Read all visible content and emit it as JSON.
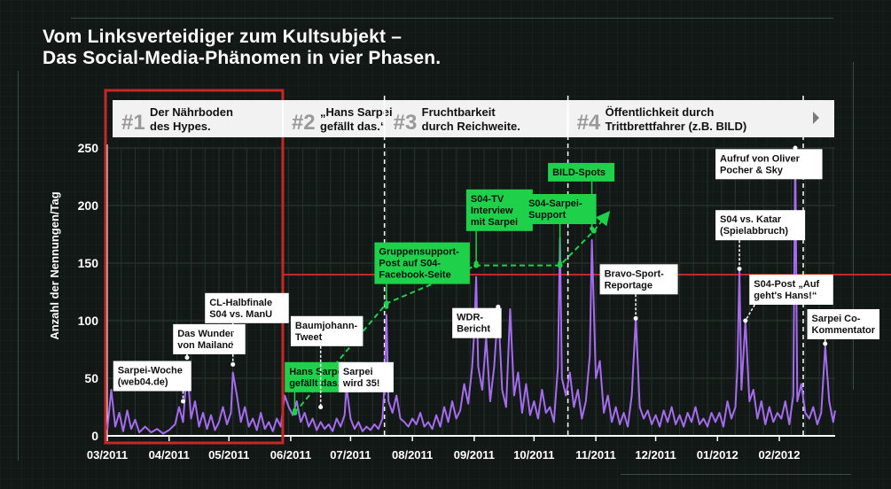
{
  "title_lines": [
    "Vom Linksverteidiger zum Kultsubjekt –",
    "Das Social-Media-Phänomen in vier Phasen."
  ],
  "chart_data": {
    "type": "line",
    "ylabel": "Anzahl der Nennungen/Tag",
    "xlabel": "",
    "ylim": [
      0,
      250
    ],
    "yticks": [
      0,
      50,
      100,
      150,
      200,
      250
    ],
    "x_start": "2011-03-01",
    "x_end": "2012-02-29",
    "xticks": [
      {
        "date": "2011-03-01",
        "label": "03/2011"
      },
      {
        "date": "2011-04-01",
        "label": "04/2011"
      },
      {
        "date": "2011-05-01",
        "label": "05/2011"
      },
      {
        "date": "2011-06-01",
        "label": "06/2011"
      },
      {
        "date": "2011-07-01",
        "label": "07/2011"
      },
      {
        "date": "2011-08-01",
        "label": "08/2011"
      },
      {
        "date": "2011-09-01",
        "label": "09/2011"
      },
      {
        "date": "2011-10-01",
        "label": "10/2011"
      },
      {
        "date": "2011-11-01",
        "label": "11/2011"
      },
      {
        "date": "2011-12-01",
        "label": "12/2011"
      },
      {
        "date": "2012-01-01",
        "label": "01/2012"
      },
      {
        "date": "2012-02-01",
        "label": "02/2012"
      }
    ],
    "series_color": "#a66cf0",
    "accent_red": "#c62828",
    "accent_green": "#1fd14a",
    "reference_level": 140,
    "series": [
      {
        "name": "",
        "points": [
          [
            "2011-03-01",
            5
          ],
          [
            "2011-03-03",
            40
          ],
          [
            "2011-03-05",
            8
          ],
          [
            "2011-03-07",
            20
          ],
          [
            "2011-03-09",
            4
          ],
          [
            "2011-03-11",
            22
          ],
          [
            "2011-03-13",
            6
          ],
          [
            "2011-03-15",
            14
          ],
          [
            "2011-03-17",
            3
          ],
          [
            "2011-03-20",
            8
          ],
          [
            "2011-03-23",
            3
          ],
          [
            "2011-03-26",
            6
          ],
          [
            "2011-03-29",
            2
          ],
          [
            "2011-04-01",
            5
          ],
          [
            "2011-04-04",
            10
          ],
          [
            "2011-04-06",
            25
          ],
          [
            "2011-04-08",
            12
          ],
          [
            "2011-04-10",
            60
          ],
          [
            "2011-04-12",
            15
          ],
          [
            "2011-04-14",
            30
          ],
          [
            "2011-04-16",
            8
          ],
          [
            "2011-04-18",
            20
          ],
          [
            "2011-04-20",
            6
          ],
          [
            "2011-04-22",
            18
          ],
          [
            "2011-04-24",
            5
          ],
          [
            "2011-04-26",
            12
          ],
          [
            "2011-04-28",
            25
          ],
          [
            "2011-04-30",
            10
          ],
          [
            "2011-05-02",
            20
          ],
          [
            "2011-05-03",
            55
          ],
          [
            "2011-05-05",
            35
          ],
          [
            "2011-05-07",
            12
          ],
          [
            "2011-05-09",
            25
          ],
          [
            "2011-05-11",
            8
          ],
          [
            "2011-05-13",
            15
          ],
          [
            "2011-05-15",
            5
          ],
          [
            "2011-05-17",
            20
          ],
          [
            "2011-05-19",
            6
          ],
          [
            "2011-05-21",
            12
          ],
          [
            "2011-05-23",
            4
          ],
          [
            "2011-05-25",
            15
          ],
          [
            "2011-05-27",
            8
          ],
          [
            "2011-05-28",
            22
          ],
          [
            "2011-05-29",
            35
          ],
          [
            "2011-05-31",
            25
          ],
          [
            "2011-06-02",
            18
          ],
          [
            "2011-06-04",
            30
          ],
          [
            "2011-06-06",
            12
          ],
          [
            "2011-06-08",
            20
          ],
          [
            "2011-06-10",
            8
          ],
          [
            "2011-06-12",
            15
          ],
          [
            "2011-06-14",
            5
          ],
          [
            "2011-06-16",
            12
          ],
          [
            "2011-06-18",
            6
          ],
          [
            "2011-06-20",
            10
          ],
          [
            "2011-06-22",
            4
          ],
          [
            "2011-06-24",
            15
          ],
          [
            "2011-06-26",
            8
          ],
          [
            "2011-06-28",
            18
          ],
          [
            "2011-06-29",
            42
          ],
          [
            "2011-07-01",
            15
          ],
          [
            "2011-07-03",
            6
          ],
          [
            "2011-07-05",
            12
          ],
          [
            "2011-07-07",
            4
          ],
          [
            "2011-07-09",
            8
          ],
          [
            "2011-07-11",
            5
          ],
          [
            "2011-07-13",
            10
          ],
          [
            "2011-07-15",
            6
          ],
          [
            "2011-07-17",
            15
          ],
          [
            "2011-07-18",
            45
          ],
          [
            "2011-07-19",
            105
          ],
          [
            "2011-07-20",
            30
          ],
          [
            "2011-07-22",
            20
          ],
          [
            "2011-07-24",
            35
          ],
          [
            "2011-07-26",
            15
          ],
          [
            "2011-07-28",
            12
          ],
          [
            "2011-07-30",
            8
          ],
          [
            "2011-08-01",
            15
          ],
          [
            "2011-08-03",
            10
          ],
          [
            "2011-08-05",
            20
          ],
          [
            "2011-08-07",
            8
          ],
          [
            "2011-08-09",
            12
          ],
          [
            "2011-08-11",
            6
          ],
          [
            "2011-08-13",
            18
          ],
          [
            "2011-08-15",
            8
          ],
          [
            "2011-08-17",
            25
          ],
          [
            "2011-08-19",
            12
          ],
          [
            "2011-08-21",
            30
          ],
          [
            "2011-08-23",
            15
          ],
          [
            "2011-08-25",
            22
          ],
          [
            "2011-08-27",
            45
          ],
          [
            "2011-08-29",
            28
          ],
          [
            "2011-08-31",
            60
          ],
          [
            "2011-09-01",
            90
          ],
          [
            "2011-09-02",
            138
          ],
          [
            "2011-09-03",
            60
          ],
          [
            "2011-09-05",
            40
          ],
          [
            "2011-09-07",
            85
          ],
          [
            "2011-09-09",
            30
          ],
          [
            "2011-09-11",
            60
          ],
          [
            "2011-09-13",
            112
          ],
          [
            "2011-09-15",
            40
          ],
          [
            "2011-09-17",
            25
          ],
          [
            "2011-09-19",
            110
          ],
          [
            "2011-09-21",
            35
          ],
          [
            "2011-09-23",
            55
          ],
          [
            "2011-09-25",
            20
          ],
          [
            "2011-09-27",
            45
          ],
          [
            "2011-09-29",
            18
          ],
          [
            "2011-10-01",
            30
          ],
          [
            "2011-10-03",
            15
          ],
          [
            "2011-10-05",
            40
          ],
          [
            "2011-10-07",
            20
          ],
          [
            "2011-10-09",
            25
          ],
          [
            "2011-10-11",
            12
          ],
          [
            "2011-10-13",
            60
          ],
          [
            "2011-10-14",
            172
          ],
          [
            "2011-10-15",
            50
          ],
          [
            "2011-10-17",
            35
          ],
          [
            "2011-10-19",
            55
          ],
          [
            "2011-10-21",
            25
          ],
          [
            "2011-10-23",
            40
          ],
          [
            "2011-10-25",
            15
          ],
          [
            "2011-10-27",
            30
          ],
          [
            "2011-10-29",
            70
          ],
          [
            "2011-10-30",
            170
          ],
          [
            "2011-11-01",
            50
          ],
          [
            "2011-11-03",
            65
          ],
          [
            "2011-11-05",
            20
          ],
          [
            "2011-11-07",
            35
          ],
          [
            "2011-11-09",
            12
          ],
          [
            "2011-11-11",
            25
          ],
          [
            "2011-11-13",
            10
          ],
          [
            "2011-11-15",
            20
          ],
          [
            "2011-11-17",
            8
          ],
          [
            "2011-11-19",
            35
          ],
          [
            "2011-11-21",
            102
          ],
          [
            "2011-11-23",
            25
          ],
          [
            "2011-11-25",
            15
          ],
          [
            "2011-11-27",
            22
          ],
          [
            "2011-11-29",
            10
          ],
          [
            "2011-12-01",
            18
          ],
          [
            "2011-12-03",
            8
          ],
          [
            "2011-12-05",
            22
          ],
          [
            "2011-12-07",
            12
          ],
          [
            "2011-12-09",
            25
          ],
          [
            "2011-12-11",
            10
          ],
          [
            "2011-12-13",
            18
          ],
          [
            "2011-12-15",
            8
          ],
          [
            "2011-12-17",
            20
          ],
          [
            "2011-12-19",
            12
          ],
          [
            "2011-12-21",
            25
          ],
          [
            "2011-12-23",
            10
          ],
          [
            "2011-12-25",
            15
          ],
          [
            "2011-12-27",
            8
          ],
          [
            "2011-12-29",
            20
          ],
          [
            "2011-12-31",
            12
          ],
          [
            "2012-01-02",
            20
          ],
          [
            "2012-01-04",
            8
          ],
          [
            "2012-01-06",
            30
          ],
          [
            "2012-01-08",
            15
          ],
          [
            "2012-01-10",
            25
          ],
          [
            "2012-01-11",
            60
          ],
          [
            "2012-01-12",
            145
          ],
          [
            "2012-01-13",
            40
          ],
          [
            "2012-01-15",
            100
          ],
          [
            "2012-01-17",
            30
          ],
          [
            "2012-01-19",
            40
          ],
          [
            "2012-01-21",
            15
          ],
          [
            "2012-01-23",
            30
          ],
          [
            "2012-01-25",
            10
          ],
          [
            "2012-01-27",
            25
          ],
          [
            "2012-01-29",
            12
          ],
          [
            "2012-01-31",
            20
          ],
          [
            "2012-02-02",
            15
          ],
          [
            "2012-02-04",
            30
          ],
          [
            "2012-02-06",
            10
          ],
          [
            "2012-02-08",
            35
          ],
          [
            "2012-02-09",
            250
          ],
          [
            "2012-02-10",
            30
          ],
          [
            "2012-02-12",
            45
          ],
          [
            "2012-02-14",
            20
          ],
          [
            "2012-02-16",
            15
          ],
          [
            "2012-02-18",
            25
          ],
          [
            "2012-02-20",
            10
          ],
          [
            "2012-02-22",
            20
          ],
          [
            "2012-02-24",
            78
          ],
          [
            "2012-02-26",
            30
          ],
          [
            "2012-02-28",
            12
          ],
          [
            "2012-02-29",
            22
          ]
        ]
      }
    ],
    "phase_dividers": [
      "2011-05-28",
      "2011-07-18",
      "2011-10-18",
      "2012-02-13"
    ],
    "phases": [
      {
        "num": "#1",
        "text": [
          "Der Nährboden",
          "des Hypes."
        ],
        "date": "2011-03-01"
      },
      {
        "num": "#2",
        "text": [
          "„Hans Sarpei",
          "gefällt das.“"
        ],
        "date": "2011-05-28"
      },
      {
        "num": "#3",
        "text": [
          "Fruchtbarkeit",
          "durch Reichweite."
        ],
        "date": "2011-07-18"
      },
      {
        "num": "#4",
        "text": [
          "Öffentlichkeit durch",
          "Trittbrettfahrer (z.B. BILD)"
        ],
        "date": "2011-10-18"
      }
    ],
    "green_trend": [
      [
        "2011-06-03",
        20
      ],
      [
        "2011-07-19",
        115
      ],
      [
        "2011-09-02",
        148
      ],
      [
        "2011-10-14",
        148
      ],
      [
        "2011-10-31",
        178
      ],
      [
        "2011-11-07",
        193
      ]
    ],
    "annotations": [
      {
        "lines": [
          "Sarpei-Woche",
          "(web04.de)"
        ],
        "box": [
          "2011-03-04",
          65
        ],
        "target": [
          "2011-04-08",
          30
        ],
        "style": "white"
      },
      {
        "lines": [
          "Das Wunder",
          "von Mailand"
        ],
        "box": [
          "2011-04-03",
          97
        ],
        "target": [
          "2011-04-10",
          68
        ],
        "style": "white"
      },
      {
        "lines": [
          "CL-Halbfinale",
          "S04 vs. ManU"
        ],
        "box": [
          "2011-04-19",
          124
        ],
        "target": [
          "2011-05-03",
          62
        ],
        "style": "white"
      },
      {
        "lines": [
          "Hans Sarpei",
          "gefällt das."
        ],
        "box": [
          "2011-05-29",
          64
        ],
        "target": [
          "2011-06-03",
          22
        ],
        "style": "green"
      },
      {
        "lines": [
          "Baumjohann-",
          "Tweet"
        ],
        "box": [
          "2011-06-01",
          104
        ],
        "target": [
          "2011-06-16",
          25
        ],
        "style": "white"
      },
      {
        "lines": [
          "Sarpei",
          "wird 35!"
        ],
        "box": [
          "2011-06-25",
          64
        ],
        "target": [
          "2011-06-29",
          43
        ],
        "style": "white"
      },
      {
        "lines": [
          "Gruppensupport-",
          "Post auf S04-",
          "Facebook-Seite"
        ],
        "box": [
          "2011-07-13",
          168
        ],
        "target": [
          "2011-07-19",
          112
        ],
        "style": "green"
      },
      {
        "lines": [
          "WDR-",
          "Bericht"
        ],
        "box": [
          "2011-08-21",
          111
        ],
        "target": [
          "2011-09-13",
          112
        ],
        "style": "white"
      },
      {
        "lines": [
          "S04-TV",
          "Interview",
          "mit Sarpei"
        ],
        "box": [
          "2011-08-28",
          214
        ],
        "target": [
          "2011-09-02",
          150
        ],
        "style": "green"
      },
      {
        "lines": [
          "S04-Sarpei-",
          "Support"
        ],
        "box": [
          "2011-09-26",
          210
        ],
        "target": [
          "2011-10-14",
          150
        ],
        "style": "green"
      },
      {
        "lines": [
          "BILD-Spots"
        ],
        "box": [
          "2011-10-08",
          237
        ],
        "target": [
          "2011-10-30",
          180
        ],
        "style": "green"
      },
      {
        "lines": [
          "Bravo-Sport-",
          "Reportage"
        ],
        "box": [
          "2011-11-03",
          149
        ],
        "target": [
          "2011-11-21",
          102
        ],
        "style": "white"
      },
      {
        "lines": [
          "Aufruf von Oliver",
          "Pocher & Sky"
        ],
        "box": [
          "2011-12-31",
          249
        ],
        "target": [
          "2012-02-09",
          250
        ],
        "style": "white"
      },
      {
        "lines": [
          "S04 vs. Katar",
          "(Spielabbruch)"
        ],
        "box": [
          "2011-12-31",
          196
        ],
        "target": [
          "2012-01-12",
          145
        ],
        "style": "white"
      },
      {
        "lines": [
          "S04-Post „Auf",
          "geht's Hans!“"
        ],
        "box": [
          "2012-01-17",
          140
        ],
        "target": [
          "2012-01-15",
          100
        ],
        "style": "white"
      },
      {
        "lines": [
          "Sarpei Co-",
          "Kommentator"
        ],
        "box": [
          "2012-02-15",
          110
        ],
        "target": [
          "2012-02-24",
          80
        ],
        "style": "white"
      }
    ]
  }
}
